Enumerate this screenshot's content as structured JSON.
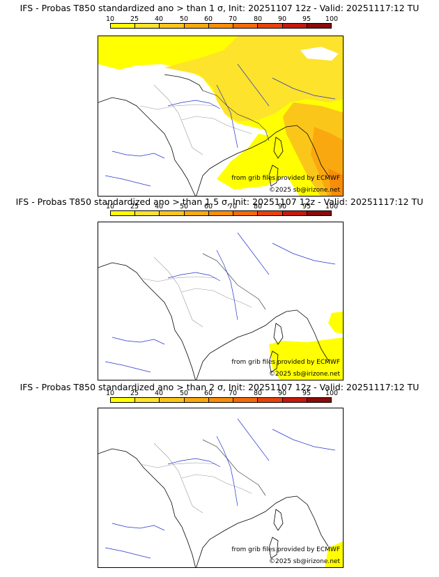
{
  "colorbar": {
    "ticks": [
      "10",
      "25",
      "40",
      "50",
      "60",
      "70",
      "80",
      "90",
      "95",
      "100"
    ],
    "colors": [
      "#ffff00",
      "#fde32b",
      "#fbc61a",
      "#f9a90f",
      "#f78d0a",
      "#f26b0a",
      "#e7420c",
      "#c7180f",
      "#8a0b0b"
    ]
  },
  "panels": [
    {
      "title": "IFS - Probas T850  standardized ano > than 1 σ, Init: 20251107 12z - Valid: 20251117:12 TU",
      "source_note": "from grib files provided by ECMWF",
      "copyright": "©2025 sb@irizone.net",
      "coverage": "yellow-orange over most of the east, central Europe and western Mediterranean"
    },
    {
      "title": "IFS - Probas T850  standardized ano > than 1.5 σ, Init: 20251107 12z - Valid: 20251117:12 TU",
      "source_note": "from grib files provided by ECMWF",
      "copyright": "©2025 sb@irizone.net",
      "coverage": "yellow over Corsica, southern Italy and Mediterranean south-east"
    },
    {
      "title": "IFS - Probas T850  standardized ano > than 2 σ, Init: 20251107 12z - Valid: 20251117:12 TU",
      "source_note": "from grib files provided by ECMWF",
      "copyright": "©2025 sb@irizone.net",
      "coverage": "small yellow patch in south-east corner"
    }
  ]
}
